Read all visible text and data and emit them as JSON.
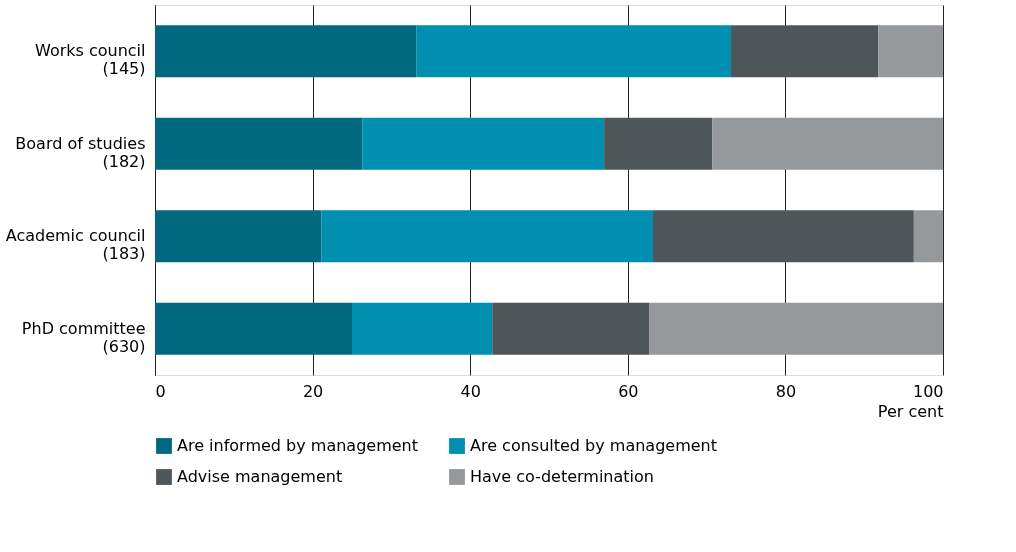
{
  "chart_data": {
    "type": "bar",
    "orientation": "horizontal",
    "stacked": true,
    "categories": [
      "Works council\n(145)",
      "Board of studies\n(182)",
      "Academic council\n(183)",
      "PhD committee\n(630)"
    ],
    "series": [
      {
        "name": "Are informed by management",
        "color": "#00687f",
        "values": [
          33.2,
          26.3,
          21.1,
          25.0
        ]
      },
      {
        "name": "Are consulted by management",
        "color": "#008fb0",
        "values": [
          39.9,
          30.7,
          42.1,
          17.8
        ]
      },
      {
        "name": "Advise management",
        "color": "#4f5659",
        "values": [
          18.7,
          13.7,
          33.1,
          19.9
        ]
      },
      {
        "name": "Have co-determination",
        "color": "#96999c",
        "values": [
          8.2,
          29.3,
          3.7,
          37.3
        ]
      }
    ],
    "xlim": [
      0,
      100
    ],
    "xticks": [
      0,
      20,
      40,
      60,
      80,
      100
    ],
    "xlabel": "Per cent",
    "grid": "x",
    "legend": "bottom"
  }
}
